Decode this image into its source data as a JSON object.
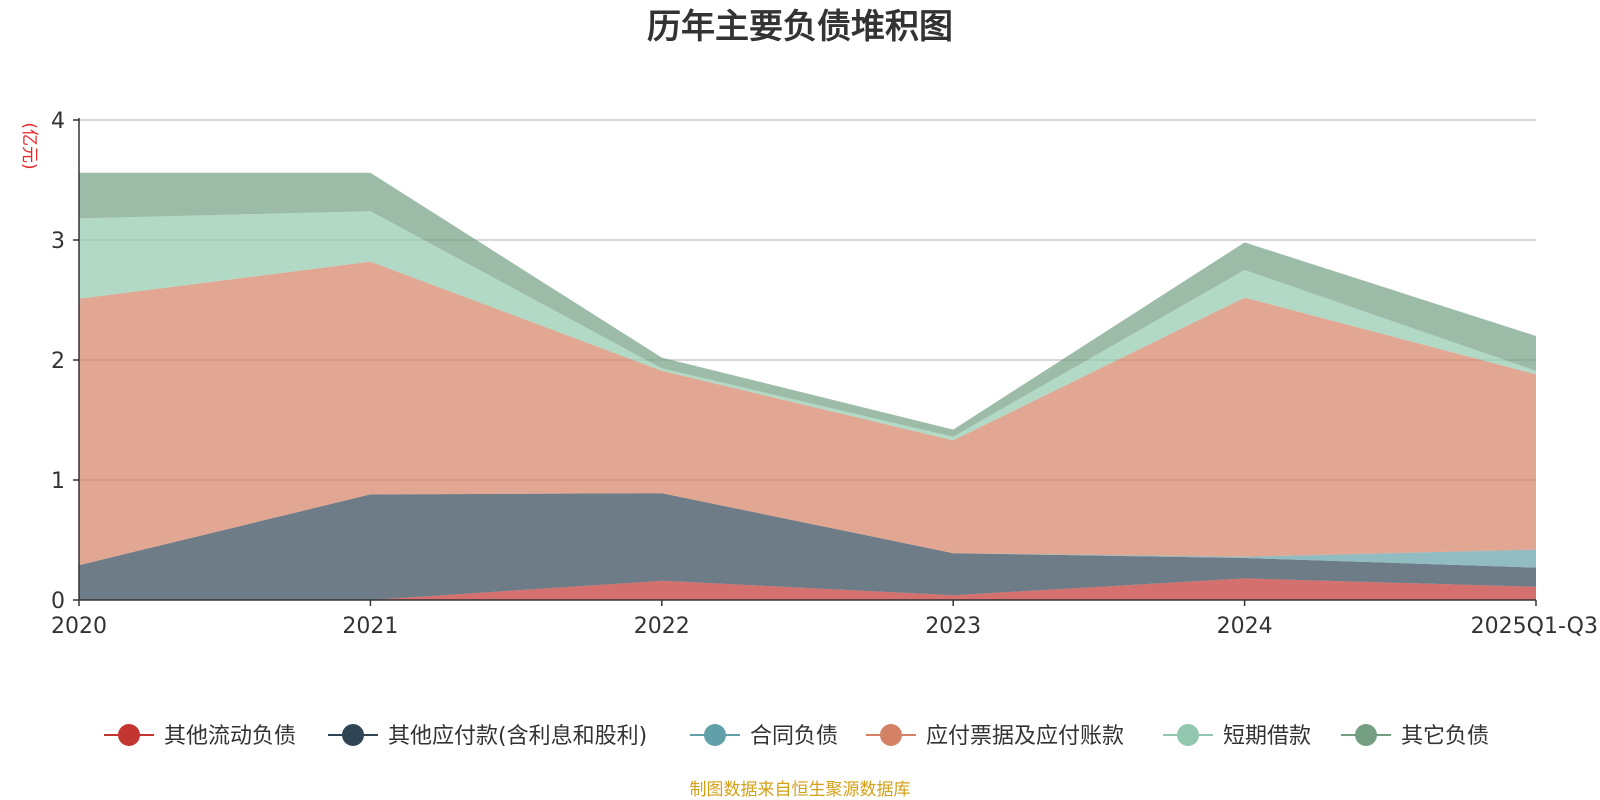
{
  "chart_data": {
    "type": "area",
    "stacked": true,
    "title": "历年主要负债堆积图",
    "unit_label": "(亿元)",
    "categories": [
      "2020",
      "2021",
      "2022",
      "2023",
      "2024",
      "2025Q1-Q3"
    ],
    "ylim": [
      0,
      4
    ],
    "yticks": [
      "0",
      "1",
      "2",
      "3",
      "4"
    ],
    "grid": true,
    "legend_position": "bottom",
    "series": [
      {
        "name": "其他流动负债",
        "color": "#c23531",
        "values": [
          0.0,
          0.0,
          0.16,
          0.04,
          0.18,
          0.11
        ]
      },
      {
        "name": "其他应付款(含利息和股利)",
        "color": "#2f4554",
        "values": [
          0.29,
          0.88,
          0.73,
          0.35,
          0.17,
          0.16
        ]
      },
      {
        "name": "合同负债",
        "color": "#61a0a8",
        "values": [
          0.0,
          0.0,
          0.0,
          0.0,
          0.01,
          0.15
        ]
      },
      {
        "name": "应付票据及应付账款",
        "color": "#d48265",
        "values": [
          2.22,
          1.94,
          1.02,
          0.94,
          2.16,
          1.46
        ]
      },
      {
        "name": "短期借款",
        "color": "#91c7ae",
        "values": [
          0.67,
          0.42,
          0.02,
          0.03,
          0.23,
          0.03
        ]
      },
      {
        "name": "其它负债",
        "color": "#749f83",
        "values": [
          0.38,
          0.32,
          0.09,
          0.06,
          0.23,
          0.29
        ]
      }
    ]
  },
  "footer": {
    "source": "制图数据来自恒生聚源数据库"
  }
}
